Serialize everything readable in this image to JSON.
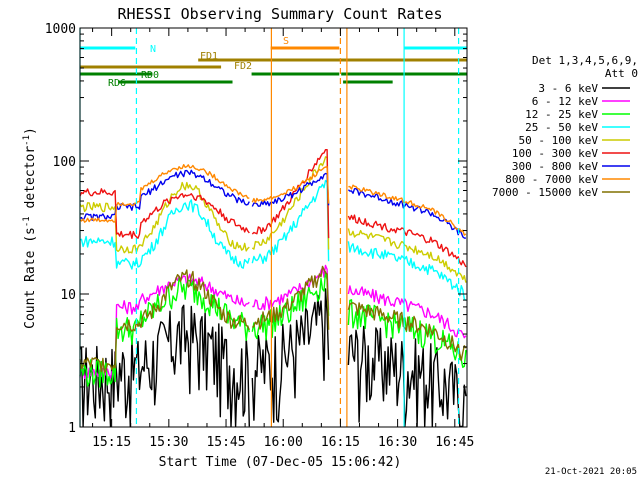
{
  "chart_data": {
    "type": "line",
    "title": "RHESSI Observing Summary Count Rates",
    "xlabel": "Start Time (07-Dec-05 15:06:42)",
    "ylabel_main": "Count Rate (s",
    "ylabel_exp": "-1",
    "ylabel_tail": " detector",
    "ylabel_exp2": "-1",
    "ylabel_close": ")",
    "x_unit": "minutes after 15:06:42",
    "xlim": [
      0,
      101.5
    ],
    "ylim": [
      1,
      1000
    ],
    "yscale": "log",
    "x_ticks": [
      {
        "m": 8.3,
        "label": "15:15"
      },
      {
        "m": 23.3,
        "label": "15:30"
      },
      {
        "m": 38.3,
        "label": "15:45"
      },
      {
        "m": 53.3,
        "label": "16:00"
      },
      {
        "m": 68.3,
        "label": "16:15"
      },
      {
        "m": 83.3,
        "label": "16:30"
      },
      {
        "m": 98.3,
        "label": "16:45"
      }
    ],
    "y_ticks": [
      {
        "v": 1,
        "label": "1"
      },
      {
        "v": 10,
        "label": "10"
      },
      {
        "v": 100,
        "label": "100"
      },
      {
        "v": 1000,
        "label": "1000"
      }
    ],
    "timestamp": "21-Oct-2021 20:05",
    "legend_header": [
      "Det 1,3,4,5,6,9,",
      "Att 0"
    ],
    "legend_position": "right",
    "series": [
      {
        "name": "3 - 6 keV",
        "color": "#000000"
      },
      {
        "name": "6 - 12 keV",
        "color": "#ff00ff"
      },
      {
        "name": "12 - 25 keV",
        "color": "#00ff00"
      },
      {
        "name": "25 - 50 keV",
        "color": "#00ffff"
      },
      {
        "name": "50 - 100 keV",
        "color": "#cccc00"
      },
      {
        "name": "100 - 300 keV",
        "color": "#ee1111"
      },
      {
        "name": "300 - 800 keV",
        "color": "#0000ee"
      },
      {
        "name": "800 - 7000 keV",
        "color": "#ff8800"
      },
      {
        "name": "7000 - 15000 keV",
        "color": "#807000"
      }
    ],
    "flags": [
      {
        "label": "N",
        "color": "#00ffff",
        "segments": [
          [
            0,
            14.5
          ],
          [
            85,
            101.5
          ]
        ],
        "level": 0
      },
      {
        "label": "S",
        "color": "#ff8800",
        "segments": [
          [
            50,
            68
          ]
        ],
        "level": 0
      },
      {
        "label": "FD1",
        "color": "#a08000",
        "segments": [
          [
            31,
            101.5
          ]
        ],
        "level": 1
      },
      {
        "label": "FD2",
        "color": "#a08000",
        "segments": [
          [
            0,
            37
          ]
        ],
        "level": 2
      },
      {
        "label": "RD0",
        "color": "#008000",
        "segments": [
          [
            0,
            19
          ],
          [
            45,
            68
          ],
          [
            68.5,
            98
          ],
          [
            94,
            101.5
          ]
        ],
        "level": 3
      },
      {
        "label": "RD6",
        "color": "#008000",
        "segments": [
          [
            10,
            40
          ],
          [
            69,
            82
          ]
        ],
        "level": 4
      }
    ],
    "vlines": [
      {
        "m": 0,
        "color": "#00ffff",
        "style": "solid"
      },
      {
        "m": 14.8,
        "color": "#00ffff",
        "style": "dashed"
      },
      {
        "m": 50.2,
        "color": "#ff8800",
        "style": "solid"
      },
      {
        "m": 68.3,
        "color": "#ff8800",
        "style": "dashed"
      },
      {
        "m": 70,
        "color": "#ff8800",
        "style": "solid"
      },
      {
        "m": 85,
        "color": "#00ffff",
        "style": "solid"
      },
      {
        "m": 99.3,
        "color": "#00ffff",
        "style": "dashed"
      }
    ]
  }
}
